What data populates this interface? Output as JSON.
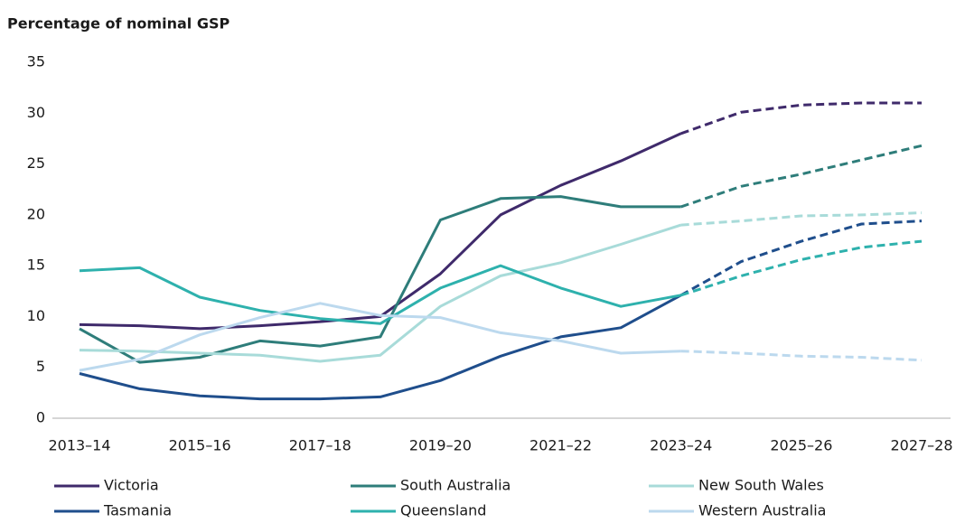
{
  "chart_data": {
    "type": "line",
    "title": "Percentage of nominal GSP",
    "categories": [
      "2013–14",
      null,
      "2015–16",
      null,
      "2017–18",
      null,
      "2019–20",
      null,
      "2021–22",
      null,
      "2023–24",
      null,
      "2025–26",
      null,
      "2027–28"
    ],
    "dashed_from": "2023–24",
    "ylim": [
      0,
      35
    ],
    "yticks": [
      0,
      5,
      10,
      15,
      20,
      25,
      30,
      35
    ],
    "grid": false,
    "legend": "bottom",
    "series": [
      {
        "name": "Victoria",
        "color": "#3f2a6b",
        "values": [
          9.2,
          9.1,
          8.8,
          9.1,
          9.5,
          10.0,
          14.2,
          20.0,
          22.9,
          25.3,
          28.0,
          30.1,
          30.8,
          31.0,
          31.0
        ]
      },
      {
        "name": "South Australia",
        "color": "#2e7d7a",
        "values": [
          8.8,
          5.5,
          6.0,
          7.6,
          7.1,
          8.0,
          19.5,
          21.6,
          21.8,
          20.8,
          20.8,
          22.8,
          24.0,
          25.4,
          26.8
        ]
      },
      {
        "name": "New South Wales",
        "color": "#a8dbd9",
        "values": [
          6.7,
          6.6,
          6.4,
          6.2,
          5.6,
          6.2,
          11.0,
          14.0,
          15.3,
          17.1,
          19.0,
          19.4,
          19.9,
          20.0,
          20.2
        ]
      },
      {
        "name": "Tasmania",
        "color": "#1f4e8c",
        "values": [
          4.4,
          2.9,
          2.2,
          1.9,
          1.9,
          2.1,
          3.7,
          6.1,
          8.0,
          8.9,
          12.1,
          15.4,
          17.4,
          19.1,
          19.4
        ]
      },
      {
        "name": "Queensland",
        "color": "#2eb1ad",
        "values": [
          14.5,
          14.8,
          11.9,
          10.6,
          9.8,
          9.3,
          12.8,
          15.0,
          12.8,
          11.0,
          12.1,
          14.0,
          15.6,
          16.8,
          17.4
        ]
      },
      {
        "name": "Western Australia",
        "color": "#bcd9ee",
        "values": [
          4.7,
          5.8,
          8.2,
          9.9,
          11.3,
          10.1,
          9.9,
          8.4,
          7.6,
          6.4,
          6.6,
          6.4,
          6.1,
          6.0,
          5.7
        ]
      }
    ]
  }
}
